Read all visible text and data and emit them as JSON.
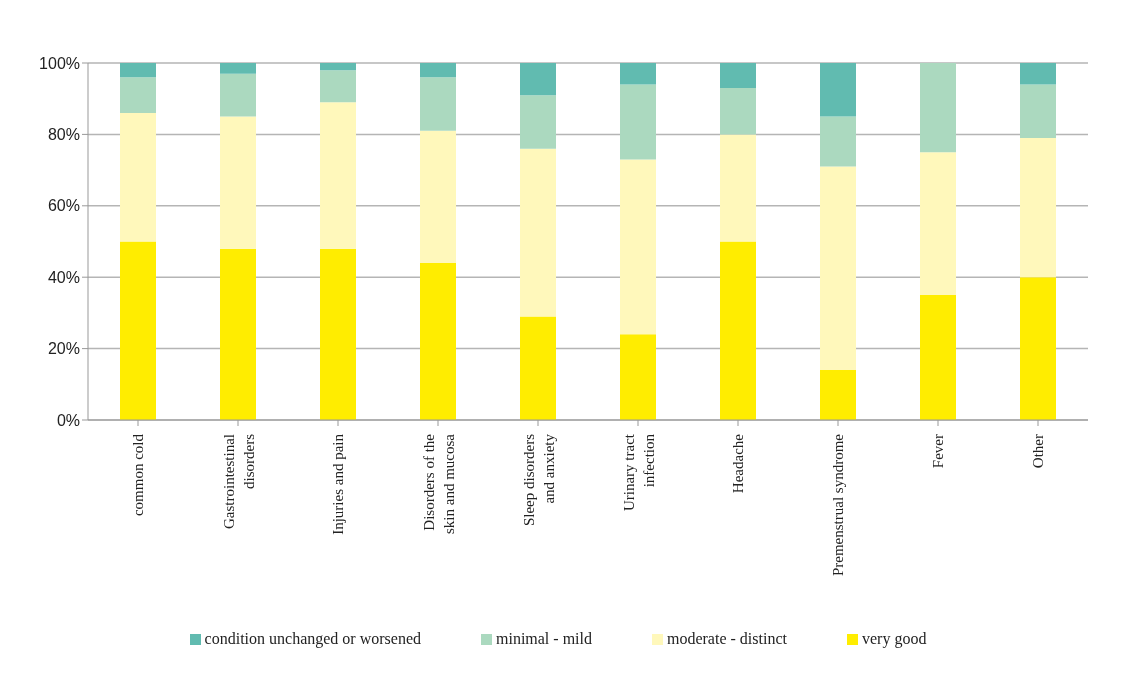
{
  "chart_data": {
    "type": "bar",
    "stacked": true,
    "categories": [
      "common cold",
      "Gastrointestinal disorders",
      "Injuries and pain",
      "Disorders of the skin and mucosa",
      "Sleep disorders and anxiety",
      "Urinary tract infection",
      "Headache",
      "Premenstrual syndrome",
      "Fever",
      "Other"
    ],
    "series": [
      {
        "name": "very good",
        "color": "#ffed00",
        "values": [
          50,
          48,
          48,
          44,
          29,
          24,
          50,
          14,
          35,
          40
        ]
      },
      {
        "name": "moderate - distinct",
        "color": "#fff8bb",
        "values": [
          36,
          37,
          41,
          37,
          47,
          49,
          30,
          57,
          40,
          39
        ]
      },
      {
        "name": "minimal - mild",
        "color": "#abd9bf",
        "values": [
          10,
          12,
          9,
          15,
          15,
          21,
          13,
          14,
          25,
          15
        ]
      },
      {
        "name": "condition unchanged or worsened",
        "color": "#61bbb0",
        "values": [
          4,
          3,
          2,
          4,
          9,
          6,
          7,
          15,
          0,
          6
        ]
      }
    ],
    "ylim": [
      0,
      100
    ],
    "yticks": [
      {
        "value": 0,
        "label": "0%"
      },
      {
        "value": 20,
        "label": "20%"
      },
      {
        "value": 40,
        "label": "40%"
      },
      {
        "value": 60,
        "label": "60%"
      },
      {
        "value": 80,
        "label": "80%"
      },
      {
        "value": 100,
        "label": "100%"
      }
    ],
    "grid": "y",
    "legend": "bottom"
  }
}
